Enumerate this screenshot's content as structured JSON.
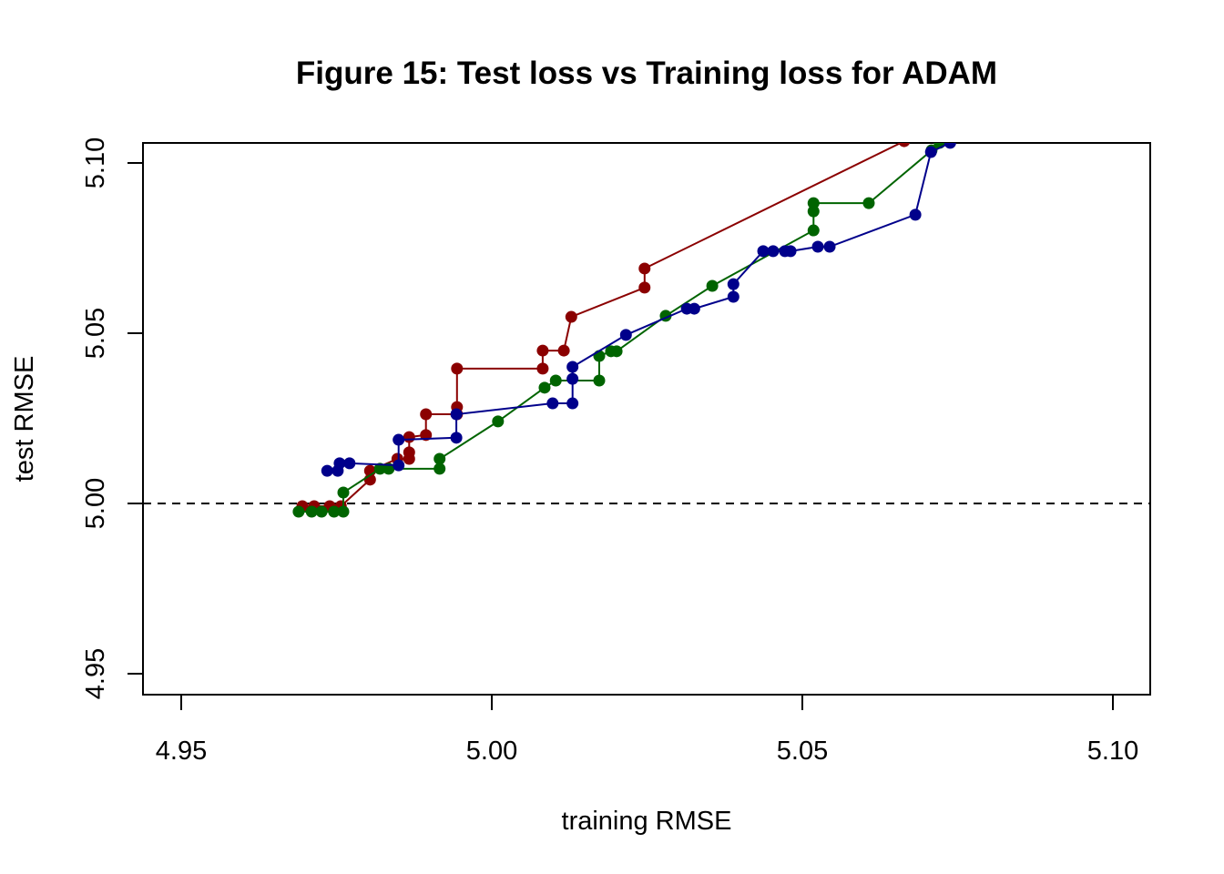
{
  "chart_data": {
    "type": "line",
    "title": "Figure 15: Test loss vs Training loss for ADAM",
    "xlabel": "training RMSE",
    "ylabel": "test RMSE",
    "xlim": [
      4.945,
      5.105
    ],
    "ylim": [
      4.94,
      5.106
    ],
    "xticks": [
      "4.95",
      "5.00",
      "5.05",
      "5.10"
    ],
    "yticks": [
      "4.95",
      "5.00",
      "5.05",
      "5.10"
    ],
    "reference_line": {
      "y": 5.0,
      "style": "dashed",
      "color": "#000000"
    },
    "grid": false,
    "series": [
      {
        "name": "red",
        "color": "#8B0000",
        "x": [
          4.9695,
          4.9714,
          4.9739,
          4.9757,
          4.9804,
          4.9804,
          4.9848,
          4.9867,
          4.9867,
          4.9867,
          4.9894,
          4.9894,
          4.9944,
          4.9944,
          4.9944,
          5.0082,
          5.0082,
          5.0116,
          5.0128,
          5.0246,
          5.0246,
          5.0664
        ],
        "y": [
          4.9992,
          4.9992,
          4.9992,
          4.9992,
          5.007,
          5.0096,
          5.0131,
          5.0131,
          5.015,
          5.0195,
          5.0201,
          5.0262,
          5.0262,
          5.0283,
          5.0396,
          5.0396,
          5.0449,
          5.0449,
          5.0548,
          5.0634,
          5.069,
          5.1064
        ]
      },
      {
        "name": "green",
        "color": "#006400",
        "x": [
          4.9689,
          4.971,
          4.9726,
          4.9746,
          4.9761,
          4.9761,
          4.982,
          4.9834,
          4.9916,
          4.9916,
          5.001,
          5.0085,
          5.0103,
          5.0173,
          5.0173,
          5.0192,
          5.0201,
          5.028,
          5.0355,
          5.0518,
          5.0518,
          5.0518,
          5.0607,
          5.0708,
          5.0721
        ],
        "y": [
          4.9976,
          4.9976,
          4.9976,
          4.9976,
          4.9976,
          5.0032,
          5.0102,
          5.0102,
          5.0102,
          5.0131,
          5.0241,
          5.034,
          5.0361,
          5.0361,
          5.0433,
          5.0447,
          5.0447,
          5.0551,
          5.0639,
          5.0802,
          5.0858,
          5.0882,
          5.0882,
          5.1037,
          5.1059
        ]
      },
      {
        "name": "blue",
        "color": "#00008B",
        "x": [
          4.9735,
          4.9752,
          4.9755,
          4.9771,
          4.985,
          4.985,
          4.9943,
          4.9943,
          5.0098,
          5.013,
          5.013,
          5.013,
          5.0216,
          5.0314,
          5.0326,
          5.0389,
          5.0389,
          5.0437,
          5.0453,
          5.0472,
          5.0481,
          5.0525,
          5.0544,
          5.0682,
          5.0707,
          5.0738
        ],
        "y": [
          5.0096,
          5.0096,
          5.0118,
          5.0118,
          5.0112,
          5.0187,
          5.0193,
          5.0262,
          5.0294,
          5.0294,
          5.0366,
          5.0401,
          5.0495,
          5.0572,
          5.0572,
          5.0607,
          5.0644,
          5.0741,
          5.0741,
          5.0741,
          5.0741,
          5.0754,
          5.0754,
          5.0848,
          5.1032,
          5.1059
        ]
      }
    ]
  }
}
